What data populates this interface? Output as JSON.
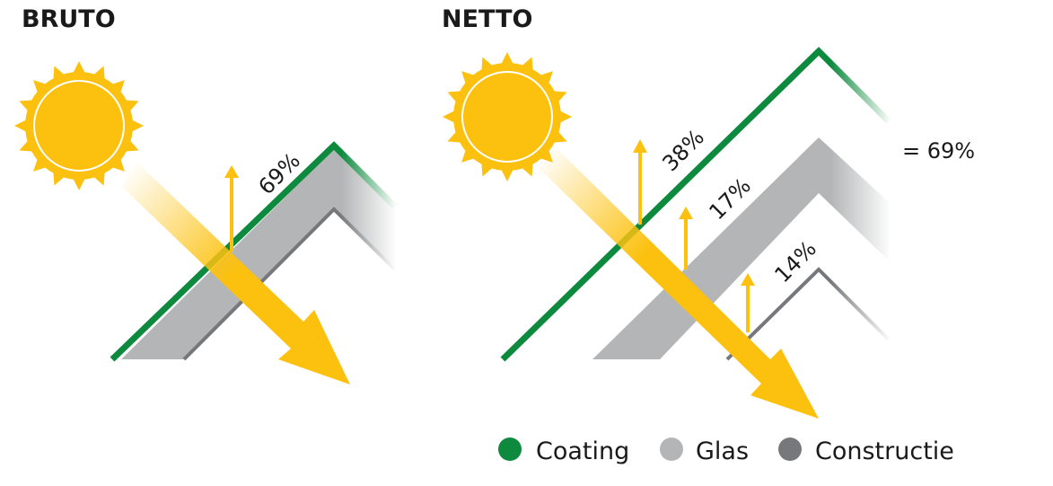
{
  "panels": [
    {
      "title": "BRUTO",
      "labels": [
        "69%"
      ]
    },
    {
      "title": "NETTO",
      "labels": [
        "38%",
        "17%",
        "14%"
      ],
      "total": "= 69%"
    }
  ],
  "legend": [
    "Coating",
    "Glas",
    "Constructie"
  ]
}
